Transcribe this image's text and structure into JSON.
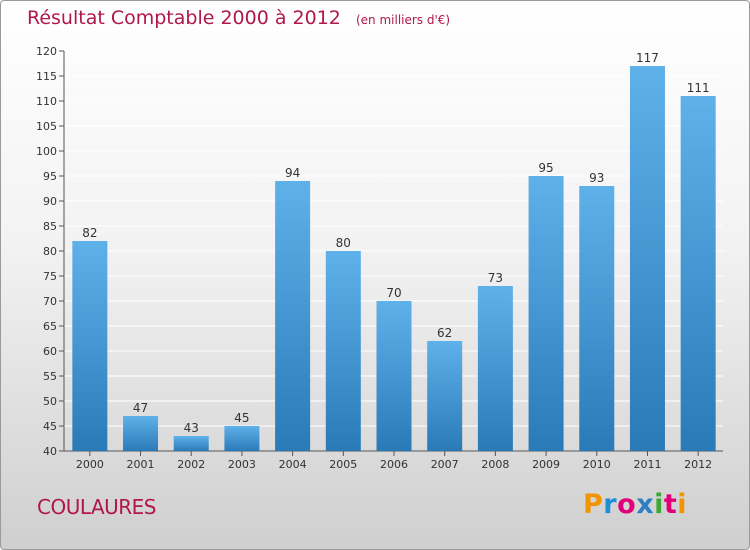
{
  "header": {
    "title": "Résultat Comptable 2000 à 2012",
    "subtitle": "(en milliers d'€)"
  },
  "footer": {
    "commune": "COULAURES",
    "logo_text": "Proxiti",
    "logo_colors": [
      "#f29400",
      "#1e8fd6",
      "#e2007a",
      "#2d7fc1",
      "#3aa935",
      "#e2007a",
      "#f29400"
    ]
  },
  "colors": {
    "title": "#b0174a",
    "bar_top": "#5fb1ea",
    "bar_bottom": "#2a7ab8",
    "grid": "#ffffff",
    "axis": "#555555"
  },
  "chart_data": {
    "type": "bar",
    "title": "Résultat Comptable 2000 à 2012",
    "subtitle": "(en milliers d'€)",
    "categories": [
      "2000",
      "2001",
      "2002",
      "2003",
      "2004",
      "2005",
      "2006",
      "2007",
      "2008",
      "2009",
      "2010",
      "2011",
      "2012"
    ],
    "values": [
      82,
      47,
      43,
      45,
      94,
      80,
      70,
      62,
      73,
      95,
      93,
      117,
      111
    ],
    "data_labels": [
      "82",
      "47",
      "43",
      "45",
      "94",
      "80",
      "70",
      "62",
      "73",
      "95",
      "93",
      "117",
      "111"
    ],
    "ylim": [
      40,
      120
    ],
    "yticks": [
      40,
      45,
      50,
      55,
      60,
      65,
      70,
      75,
      80,
      85,
      90,
      95,
      100,
      105,
      110,
      115,
      120
    ],
    "ytick_labels": [
      "40",
      "45",
      "50",
      "55",
      "60",
      "65",
      "70",
      "75",
      "80",
      "85",
      "90",
      "95",
      "100",
      "105",
      "110",
      "115",
      "120"
    ],
    "grid": true,
    "legend": "none"
  }
}
